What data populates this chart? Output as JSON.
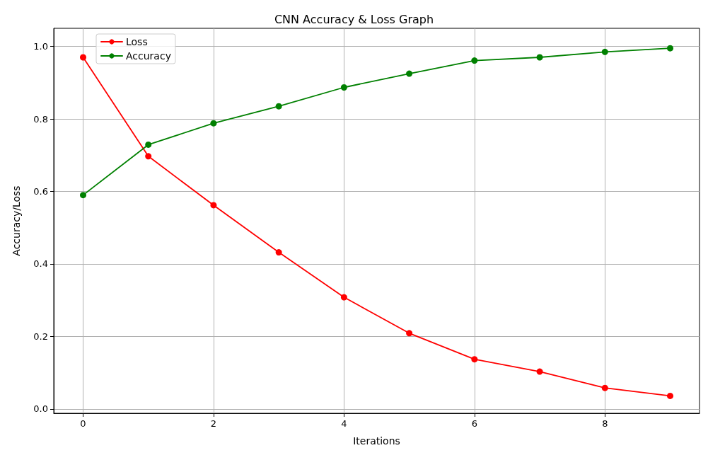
{
  "chart_data": {
    "type": "line",
    "title": "CNN Accuracy & Loss Graph",
    "xlabel": "Iterations",
    "ylabel": "Accuracy/Loss",
    "x": [
      0,
      1,
      2,
      3,
      4,
      5,
      6,
      7,
      8,
      9
    ],
    "series": [
      {
        "name": "Loss",
        "color": "#ff0000",
        "values": [
          0.97,
          0.697,
          0.562,
          0.432,
          0.308,
          0.209,
          0.137,
          0.103,
          0.058,
          0.036
        ]
      },
      {
        "name": "Accuracy",
        "color": "#008000",
        "values": [
          0.59,
          0.729,
          0.788,
          0.835,
          0.887,
          0.925,
          0.961,
          0.97,
          0.985,
          0.995
        ]
      }
    ],
    "xlim": [
      -0.45,
      9.45
    ],
    "xticks": [
      0,
      2,
      4,
      6,
      8
    ],
    "ylim": [
      -0.012,
      1.05
    ],
    "yticks": [
      {
        "value": 0,
        "label": "0.0"
      },
      0.2,
      0.4,
      0.6,
      0.8,
      {
        "value": 1,
        "label": "1.0"
      }
    ],
    "grid": true,
    "legend": "top left",
    "marker": "circle",
    "line_style": "solid"
  }
}
